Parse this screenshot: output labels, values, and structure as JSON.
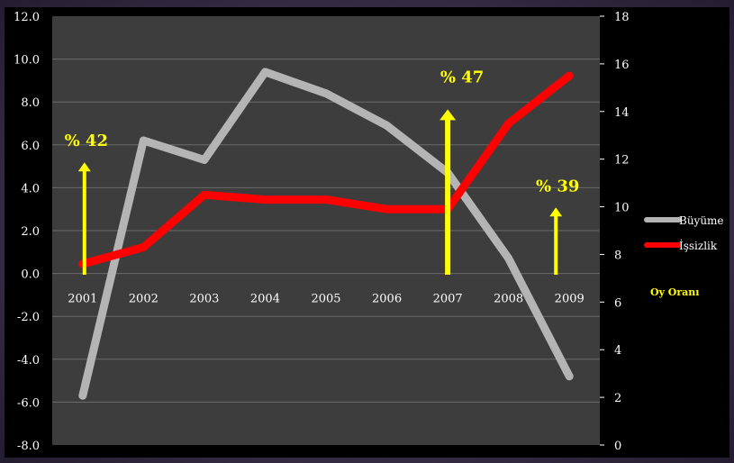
{
  "chart_data": {
    "type": "line",
    "categories": [
      "2001",
      "2002",
      "2003",
      "2004",
      "2005",
      "2006",
      "2007",
      "2008",
      "2009"
    ],
    "y_left": {
      "min": -8,
      "max": 12,
      "step": 2,
      "tick_labels": [
        "-8.0",
        "-6.0",
        "-4.0",
        "-2.0",
        "0.0",
        "2.0",
        "4.0",
        "6.0",
        "8.0",
        "10.0",
        "12.0"
      ]
    },
    "y_right": {
      "min": 0,
      "max": 18,
      "step": 2,
      "tick_labels": [
        "0",
        "2",
        "4",
        "6",
        "8",
        "10",
        "12",
        "14",
        "16",
        "18"
      ]
    },
    "series": [
      {
        "name": "Büyüme",
        "axis": "left",
        "color": "#b4b4b4",
        "values": [
          -5.7,
          6.2,
          5.3,
          9.4,
          8.4,
          6.9,
          4.7,
          0.7,
          -4.8
        ]
      },
      {
        "name": "İşsizlik",
        "axis": "right",
        "color": "#ff0000",
        "values": [
          7.6,
          8.3,
          10.5,
          10.3,
          10.3,
          9.9,
          9.9,
          13.5,
          15.5
        ]
      }
    ],
    "vote_arrows": [
      {
        "year": "2001",
        "label": "% 42",
        "value": 42
      },
      {
        "year": "2007",
        "label": "% 47",
        "value": 47
      },
      {
        "year": "2009",
        "label": "% 39",
        "value": 39
      }
    ],
    "vote_legend_label": "Oy Oranı",
    "grid": true,
    "legend_placement": "right",
    "colors": {
      "plot_bg": "#3d3d3d",
      "grid": "#6b6b6b",
      "arrow": "#ffff00",
      "tick_text": "#ffffff"
    }
  }
}
